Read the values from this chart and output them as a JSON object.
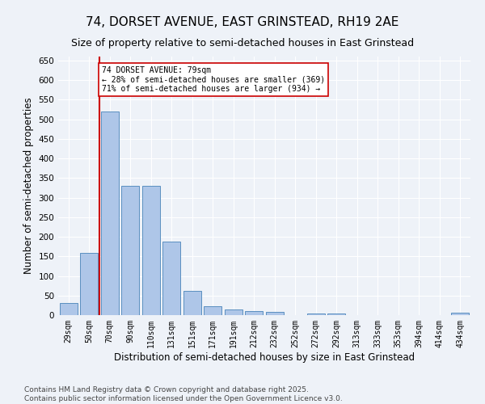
{
  "title": "74, DORSET AVENUE, EAST GRINSTEAD, RH19 2AE",
  "subtitle": "Size of property relative to semi-detached houses in East Grinstead",
  "xlabel": "Distribution of semi-detached houses by size in East Grinstead",
  "ylabel": "Number of semi-detached properties",
  "categories": [
    "29sqm",
    "50sqm",
    "70sqm",
    "90sqm",
    "110sqm",
    "131sqm",
    "151sqm",
    "171sqm",
    "191sqm",
    "212sqm",
    "232sqm",
    "252sqm",
    "272sqm",
    "292sqm",
    "313sqm",
    "333sqm",
    "353sqm",
    "394sqm",
    "414sqm",
    "434sqm"
  ],
  "values": [
    30,
    158,
    519,
    330,
    330,
    188,
    62,
    22,
    14,
    11,
    8,
    0,
    5,
    5,
    0,
    0,
    0,
    0,
    0,
    6
  ],
  "bar_color": "#aec6e8",
  "bar_edge_color": "#5a8fc0",
  "vline_x": 1.5,
  "vline_color": "#cc0000",
  "annotation_text": "74 DORSET AVENUE: 79sqm\n← 28% of semi-detached houses are smaller (369)\n71% of semi-detached houses are larger (934) →",
  "annotation_box_color": "#ffffff",
  "annotation_box_edge": "#cc0000",
  "ylim": [
    0,
    660
  ],
  "yticks": [
    0,
    50,
    100,
    150,
    200,
    250,
    300,
    350,
    400,
    450,
    500,
    550,
    600,
    650
  ],
  "bg_color": "#eef2f8",
  "plot_bg_color": "#eef2f8",
  "footer": "Contains HM Land Registry data © Crown copyright and database right 2025.\nContains public sector information licensed under the Open Government Licence v3.0.",
  "title_fontsize": 11,
  "subtitle_fontsize": 9,
  "xlabel_fontsize": 8.5,
  "ylabel_fontsize": 8.5,
  "footer_fontsize": 6.5
}
